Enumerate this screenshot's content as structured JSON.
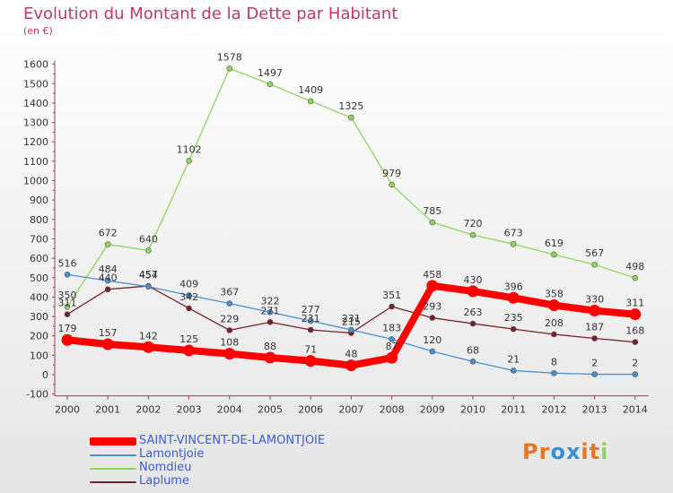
{
  "title": "Evolution du Montant de la Dette par Habitant",
  "unit": "(en €)",
  "brand": "Proxiti",
  "chart_data": {
    "type": "line",
    "title": "Evolution du Montant de la Dette par Habitant",
    "ylabel": "(en €)",
    "xlabel": "",
    "ylim": [
      -100,
      1600
    ],
    "y_ticks": [
      -100,
      0,
      100,
      200,
      300,
      400,
      500,
      600,
      700,
      800,
      900,
      1000,
      1100,
      1200,
      1300,
      1400,
      1500,
      1600
    ],
    "x": [
      "2000",
      "2001",
      "2002",
      "2003",
      "2004",
      "2005",
      "2006",
      "2007",
      "2008",
      "2009",
      "2010",
      "2011",
      "2012",
      "2013",
      "2014"
    ],
    "grid": false,
    "legend_position": "bottom-left",
    "series": [
      {
        "name": "SAINT-VINCENT-DE-LAMONTJOIE",
        "color": "#ff0000",
        "values": [
          179,
          157,
          142,
          125,
          108,
          88,
          71,
          48,
          87,
          458,
          430,
          396,
          358,
          330,
          311
        ]
      },
      {
        "name": "Lamontjoie",
        "color": "#4a8fd0",
        "values": [
          516,
          484,
          454,
          409,
          367,
          322,
          277,
          231,
          183,
          120,
          68,
          21,
          8,
          2,
          2
        ]
      },
      {
        "name": "Nomdieu",
        "color": "#8ed65a",
        "values": [
          350,
          672,
          640,
          1102,
          1578,
          1497,
          1409,
          1325,
          979,
          785,
          720,
          673,
          619,
          567,
          498
        ]
      },
      {
        "name": "Laplume",
        "color": "#7a1f2a",
        "values": [
          311,
          440,
          457,
          342,
          229,
          271,
          231,
          215,
          351,
          293,
          263,
          235,
          208,
          187,
          168
        ]
      }
    ]
  },
  "colors": {
    "title": "#c0386a",
    "axis": "#b03060",
    "legend_text": "#3b5bdb",
    "brand_letters": [
      "#e87722",
      "#e87722",
      "#3b8fd0",
      "#3b8fd0",
      "#e87722",
      "#e87722",
      "#8ed65a"
    ]
  }
}
